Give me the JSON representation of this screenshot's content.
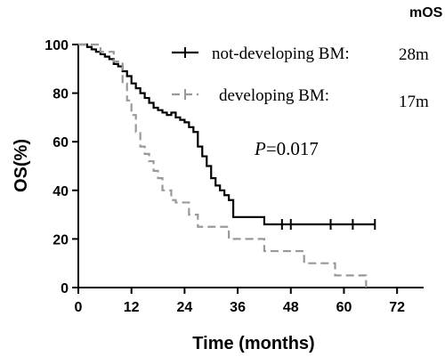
{
  "chart_data": {
    "type": "line",
    "subtype": "kaplan-meier",
    "xlabel": "Time (months)",
    "ylabel": "OS(%)",
    "xlim": [
      0,
      78
    ],
    "ylim": [
      0,
      100
    ],
    "xticks": [
      0,
      12,
      24,
      36,
      48,
      60,
      72
    ],
    "yticks": [
      0,
      20,
      40,
      60,
      80,
      100
    ],
    "grid": false,
    "legend_position": "top-right",
    "legend_header": "mOS",
    "p_value_prefix": "P",
    "p_value_text": "=0.017",
    "series": [
      {
        "name": "not-developing BM:",
        "mos": "28m",
        "color": "#000000",
        "dash": "solid",
        "x": [
          0,
          2,
          3,
          4,
          5,
          6,
          7,
          8,
          9,
          10,
          11,
          12,
          13,
          14,
          15,
          16,
          17,
          18,
          19,
          20,
          21,
          22,
          23,
          24,
          25,
          26,
          27,
          28,
          29,
          30,
          31,
          32,
          33,
          34,
          35,
          42,
          67
        ],
        "y": [
          100,
          99,
          98,
          97,
          96,
          95,
          94,
          92,
          91,
          89,
          87,
          84,
          82,
          80,
          78,
          76,
          74,
          73,
          72,
          71,
          72,
          70,
          69,
          68,
          66,
          64,
          58,
          54,
          50,
          45,
          42,
          40,
          38,
          36,
          29,
          26,
          26
        ],
        "censored_x": [
          46,
          48,
          57,
          62,
          67
        ]
      },
      {
        "name": "developing BM:",
        "mos": "17m",
        "color": "#999999",
        "dash": "dashed",
        "x": [
          0,
          5,
          8,
          10,
          11,
          12,
          13,
          14,
          15,
          16,
          17,
          18,
          19,
          21,
          22,
          25,
          27,
          31,
          34,
          37,
          42,
          48,
          51,
          58,
          65
        ],
        "y": [
          100,
          97,
          93,
          84,
          77,
          71,
          64,
          58,
          55,
          52,
          48,
          45,
          40,
          36,
          35,
          30,
          25,
          25,
          20,
          20,
          15,
          15,
          10,
          5,
          0
        ],
        "censored_x": []
      }
    ]
  }
}
